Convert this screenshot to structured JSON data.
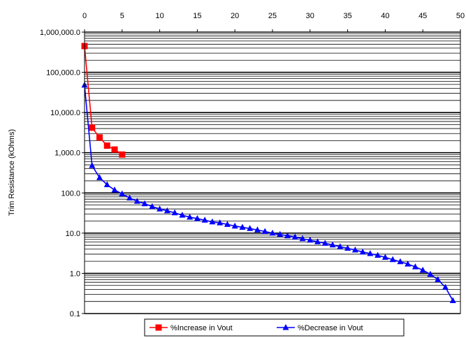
{
  "chart_data": {
    "type": "line",
    "title": "",
    "xlabel": "",
    "ylabel": "Trim Resistance (kOhms)",
    "x_axis_position": "top",
    "xlim": [
      0,
      50
    ],
    "x_ticks": [
      "0",
      "5",
      "10",
      "15",
      "20",
      "25",
      "30",
      "35",
      "40",
      "45",
      "50"
    ],
    "y_scale": "log",
    "ylim": [
      0.1,
      1000000
    ],
    "y_ticks": [
      "0.1",
      "1.0",
      "10.0",
      "100.0",
      "1,000.0",
      "10,000.0",
      "100,000.0",
      "1,000,000.0"
    ],
    "grid": "horizontal major and minor",
    "legend_position": "bottom",
    "series": [
      {
        "name": "%Increase in Vout",
        "color": "#ff0000",
        "marker": "square",
        "x": [
          0,
          1,
          2,
          3,
          4,
          5
        ],
        "values": [
          450000,
          4200,
          2400,
          1500,
          1200,
          900
        ]
      },
      {
        "name": "%Decrease in Vout",
        "color": "#0000ff",
        "marker": "triangle",
        "x": [
          0,
          1,
          2,
          3,
          4,
          5,
          6,
          7,
          8,
          9,
          10,
          11,
          12,
          13,
          14,
          15,
          16,
          17,
          18,
          19,
          20,
          21,
          22,
          23,
          24,
          25,
          26,
          27,
          28,
          29,
          30,
          31,
          32,
          33,
          34,
          35,
          36,
          37,
          38,
          39,
          40,
          41,
          42,
          43,
          44,
          45,
          46,
          47,
          48,
          49
        ],
        "values": [
          48000,
          480,
          240,
          160,
          118,
          95,
          75,
          62,
          54,
          46,
          40,
          36,
          32,
          28,
          25,
          23,
          21,
          19,
          18,
          16.5,
          15,
          14,
          13,
          12,
          11,
          10,
          9.3,
          8.6,
          8.0,
          7.3,
          6.7,
          6.1,
          5.6,
          5.1,
          4.6,
          4.2,
          3.8,
          3.4,
          3.1,
          2.8,
          2.5,
          2.2,
          1.95,
          1.7,
          1.45,
          1.2,
          0.95,
          0.7,
          0.45,
          0.21
        ]
      }
    ]
  }
}
